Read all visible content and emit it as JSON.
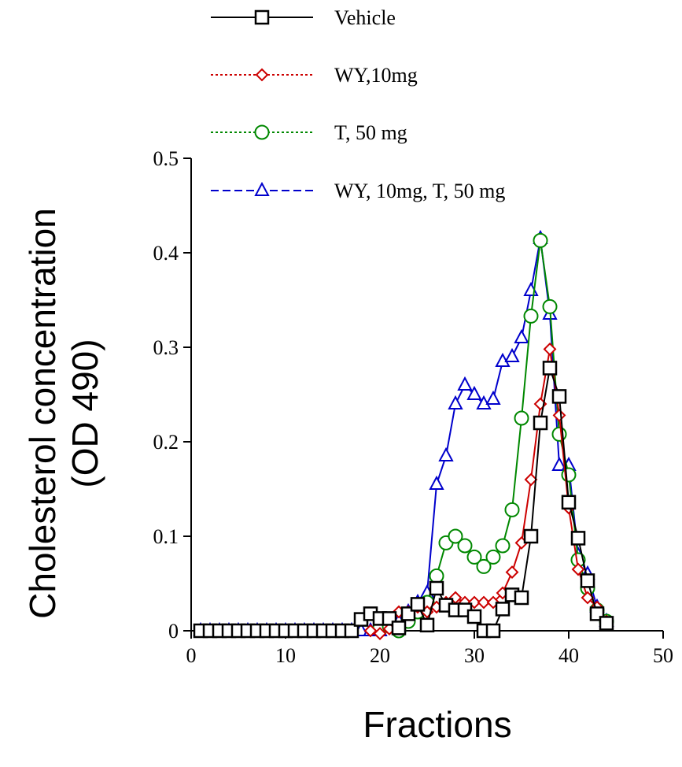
{
  "chart_data": {
    "type": "line",
    "title": "",
    "xlabel": "Fractions",
    "ylabel_line1": "Cholesterol concentration",
    "ylabel_line2": "(OD 490)",
    "xlim": [
      0,
      50
    ],
    "ylim": [
      0,
      0.5
    ],
    "x_ticks": [
      {
        "value": 0,
        "label": "0"
      },
      {
        "value": 10,
        "label": "10"
      },
      {
        "value": 20,
        "label": "20"
      },
      {
        "value": 30,
        "label": "30"
      },
      {
        "value": 40,
        "label": "40"
      },
      {
        "value": 50,
        "label": "50"
      }
    ],
    "y_ticks": [
      {
        "value": 0,
        "label": "0"
      },
      {
        "value": 0.1,
        "label": "0.1"
      },
      {
        "value": 0.2,
        "label": "0.2"
      },
      {
        "value": 0.3,
        "label": "0.3"
      },
      {
        "value": 0.4,
        "label": "0.4"
      },
      {
        "value": 0.5,
        "label": "0.5"
      }
    ],
    "grid": false,
    "legend_position": "top",
    "series": [
      {
        "name": "WY, 10mg, T, 50 mg",
        "color": "#0000cc",
        "marker": "triangle",
        "line_style": "dashed",
        "points": [
          [
            1,
            0
          ],
          [
            2,
            0
          ],
          [
            3,
            0
          ],
          [
            4,
            0
          ],
          [
            5,
            0
          ],
          [
            6,
            0
          ],
          [
            7,
            0
          ],
          [
            8,
            0
          ],
          [
            9,
            0
          ],
          [
            10,
            0
          ],
          [
            11,
            0
          ],
          [
            12,
            0
          ],
          [
            13,
            0
          ],
          [
            14,
            0
          ],
          [
            15,
            0
          ],
          [
            16,
            0
          ],
          [
            17,
            0
          ],
          [
            18,
            0
          ],
          [
            19,
            0
          ],
          [
            20,
            0
          ],
          [
            21,
            0.01
          ],
          [
            22,
            0.01
          ],
          [
            23,
            0.02
          ],
          [
            24,
            0.03
          ],
          [
            25,
            0.04
          ],
          [
            26,
            0.155
          ],
          [
            27,
            0.185
          ],
          [
            28,
            0.24
          ],
          [
            29,
            0.26
          ],
          [
            30,
            0.25
          ],
          [
            31,
            0.24
          ],
          [
            32,
            0.245
          ],
          [
            33,
            0.285
          ],
          [
            34,
            0.29
          ],
          [
            35,
            0.31
          ],
          [
            36,
            0.36
          ],
          [
            37,
            0.415
          ],
          [
            38,
            0.335
          ],
          [
            39,
            0.175
          ],
          [
            40,
            0.175
          ],
          [
            41,
            0.08
          ],
          [
            42,
            0.06
          ],
          [
            43,
            0.025
          ],
          [
            44,
            0.01
          ]
        ]
      },
      {
        "name": "T, 50 mg",
        "color": "#008800",
        "marker": "circle",
        "line_style": "dotted",
        "points": [
          [
            20,
            0.003
          ],
          [
            21,
            0.005
          ],
          [
            22,
            0.0
          ],
          [
            23,
            0.01
          ],
          [
            24,
            0.02
          ],
          [
            25,
            0.03
          ],
          [
            26,
            0.058
          ],
          [
            27,
            0.093
          ],
          [
            28,
            0.1
          ],
          [
            29,
            0.09
          ],
          [
            30,
            0.078
          ],
          [
            31,
            0.068
          ],
          [
            32,
            0.078
          ],
          [
            33,
            0.09
          ],
          [
            34,
            0.128
          ],
          [
            35,
            0.225
          ],
          [
            36,
            0.333
          ],
          [
            37,
            0.413
          ],
          [
            38,
            0.343
          ],
          [
            39,
            0.208
          ],
          [
            40,
            0.165
          ],
          [
            41,
            0.075
          ],
          [
            42,
            0.045
          ],
          [
            43,
            0.022
          ],
          [
            44,
            0.01
          ]
        ]
      },
      {
        "name": "WY,10mg",
        "color": "#cc0000",
        "marker": "diamond",
        "line_style": "dotted",
        "points": [
          [
            19,
            0.0
          ],
          [
            20,
            -0.003
          ],
          [
            21,
            0.002
          ],
          [
            22,
            0.02
          ],
          [
            23,
            0.02
          ],
          [
            24,
            0.025
          ],
          [
            25,
            0.02
          ],
          [
            26,
            0.025
          ],
          [
            27,
            0.03
          ],
          [
            28,
            0.035
          ],
          [
            29,
            0.03
          ],
          [
            30,
            0.03
          ],
          [
            31,
            0.03
          ],
          [
            32,
            0.03
          ],
          [
            33,
            0.04
          ],
          [
            34,
            0.062
          ],
          [
            35,
            0.093
          ],
          [
            36,
            0.16
          ],
          [
            37,
            0.24
          ],
          [
            38,
            0.298
          ],
          [
            39,
            0.228
          ],
          [
            40,
            0.13
          ],
          [
            41,
            0.065
          ],
          [
            42,
            0.035
          ],
          [
            43,
            0.025
          ],
          [
            44,
            0.01
          ]
        ]
      },
      {
        "name": "Vehicle",
        "color": "#000000",
        "marker": "square",
        "line_style": "solid",
        "points": [
          [
            1,
            0
          ],
          [
            2,
            0
          ],
          [
            3,
            0
          ],
          [
            4,
            0
          ],
          [
            5,
            0
          ],
          [
            6,
            0
          ],
          [
            7,
            0
          ],
          [
            8,
            0
          ],
          [
            9,
            0
          ],
          [
            10,
            0
          ],
          [
            11,
            0
          ],
          [
            12,
            0
          ],
          [
            13,
            0
          ],
          [
            14,
            0
          ],
          [
            15,
            0
          ],
          [
            16,
            0
          ],
          [
            17,
            0
          ],
          [
            18,
            0.012
          ],
          [
            19,
            0.018
          ],
          [
            20,
            0.013
          ],
          [
            21,
            0.013
          ],
          [
            22,
            0.003
          ],
          [
            23,
            0.018
          ],
          [
            24,
            0.028
          ],
          [
            25,
            0.006
          ],
          [
            26,
            0.045
          ],
          [
            27,
            0.027
          ],
          [
            28,
            0.022
          ],
          [
            29,
            0.022
          ],
          [
            30,
            0.015
          ],
          [
            31,
            0.0
          ],
          [
            32,
            0.0
          ],
          [
            33,
            0.023
          ],
          [
            34,
            0.038
          ],
          [
            35,
            0.035
          ],
          [
            36,
            0.1
          ],
          [
            37,
            0.22
          ],
          [
            38,
            0.278
          ],
          [
            39,
            0.248
          ],
          [
            40,
            0.136
          ],
          [
            41,
            0.098
          ],
          [
            42,
            0.053
          ],
          [
            43,
            0.018
          ],
          [
            44,
            0.008
          ]
        ]
      }
    ]
  }
}
